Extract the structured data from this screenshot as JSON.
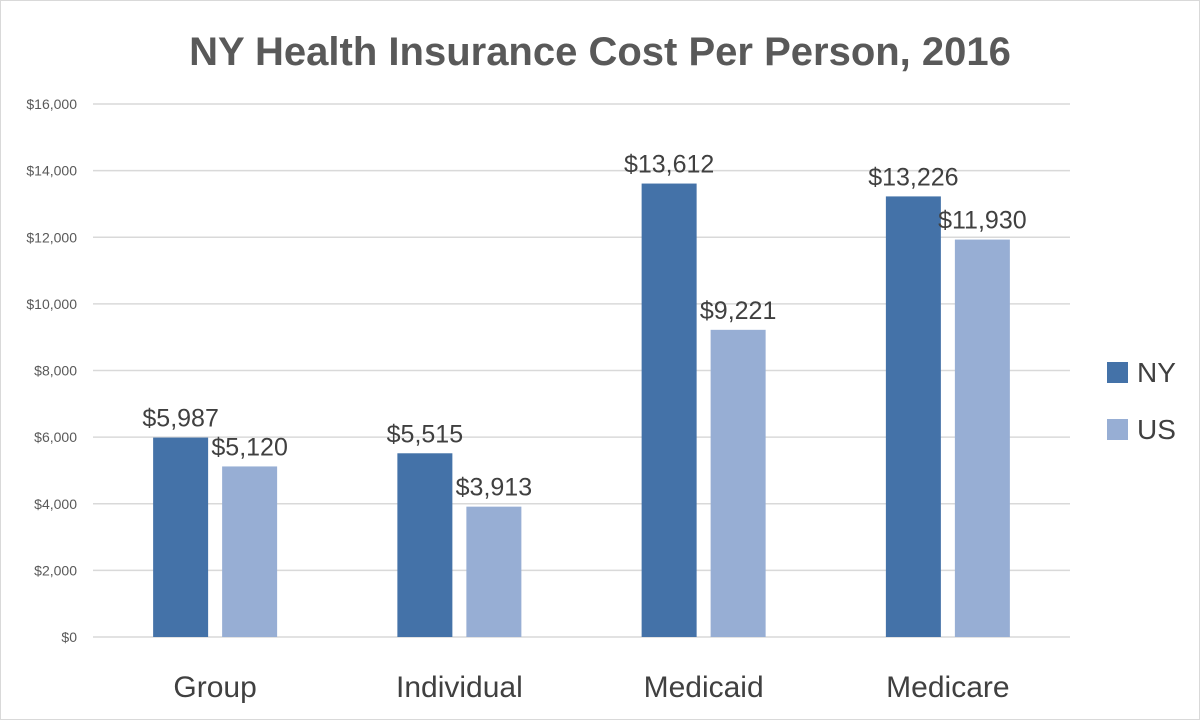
{
  "chart_data": {
    "type": "bar",
    "title": "NY Health Insurance Cost Per Person, 2016",
    "categories": [
      "Group",
      "Individual",
      "Medicaid",
      "Medicare"
    ],
    "series": [
      {
        "name": "NY",
        "color": "#4472a8",
        "values": [
          5987,
          5515,
          13612,
          13226
        ],
        "labels": [
          "$5,987",
          "$5,515",
          "$13,612",
          "$13,226"
        ]
      },
      {
        "name": "US",
        "color": "#97aed4",
        "values": [
          5120,
          3913,
          9221,
          11930
        ],
        "labels": [
          "$5,120",
          "$3,913",
          "$9,221",
          "$11,930"
        ]
      }
    ],
    "ylim": [
      0,
      16000
    ],
    "yticks": [
      0,
      2000,
      4000,
      6000,
      8000,
      10000,
      12000,
      14000,
      16000
    ],
    "ytick_labels": [
      "$0",
      "$2,000",
      "$4,000",
      "$6,000",
      "$8,000",
      "$10,000",
      "$12,000",
      "$14,000",
      "$16,000"
    ],
    "xlabel": "",
    "ylabel": "",
    "grid": true,
    "legend_position": "right"
  }
}
